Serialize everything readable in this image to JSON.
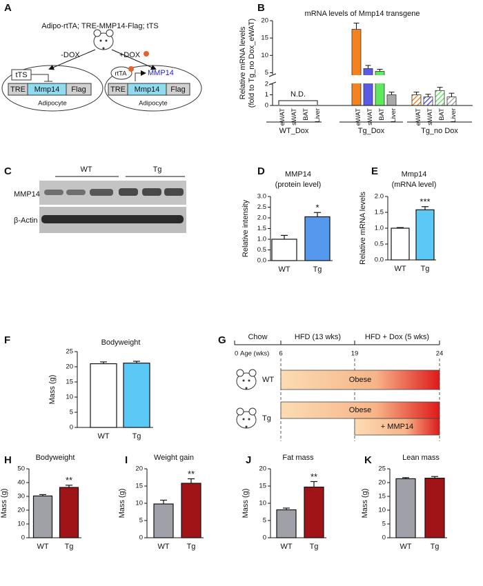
{
  "diagram_a": {
    "panel": "A",
    "title": "Adipo-rtTA; TRE-MMP14-Flag; tTS",
    "left_arrow": "-DOX",
    "right_arrow": "+DOX",
    "left_cell": {
      "repressor": "tTS",
      "promoter": "TRE",
      "gene": "Mmp14",
      "tag": "Flag",
      "label": "Adipocyte"
    },
    "right_cell": {
      "activator": "rtTA",
      "product": "MMP14",
      "promoter": "TRE",
      "gene": "Mmp14",
      "tag": "Flag",
      "label": "Adipocyte"
    }
  },
  "blot_c": {
    "panel": "C",
    "groups": [
      "WT",
      "Tg"
    ],
    "rows": [
      "MMP14",
      "β-Actin"
    ]
  },
  "timeline_g": {
    "panel": "G",
    "phases": [
      "Chow",
      "HFD (13 wks)",
      "HFD + Dox (5 wks)"
    ],
    "ticks": [
      0,
      6,
      19,
      24
    ],
    "axis_label": "Age (wks)",
    "rows": [
      {
        "name": "WT",
        "bars": [
          "Obese"
        ]
      },
      {
        "name": "Tg",
        "bars": [
          "Obese",
          "+ MMP14"
        ]
      }
    ]
  },
  "chart_data": [
    {
      "panel": "B",
      "type": "broken-bar",
      "title": "mRNA levels of Mmp14 transgene",
      "y_label": "Relative mRNA levels",
      "y_label_sub": "(fold to Tg_no Dox_eWAT)",
      "categories": [
        "eWAT",
        "sWAT",
        "BAT",
        "Liver"
      ],
      "series": [
        {
          "name": "WT_Dox",
          "values": [
            null,
            null,
            null,
            null
          ]
        },
        {
          "name": "Tg_Dox",
          "values": [
            17.5,
            6.2,
            5.4,
            1.0
          ],
          "errors": [
            1.8,
            0.9,
            0.6,
            0.25
          ],
          "colors": [
            "#f5821f",
            "#5a5ae6",
            "#5ee85e",
            "#a8a8a8"
          ]
        },
        {
          "name": "Tg_no Dox",
          "values": [
            1.0,
            0.8,
            1.4,
            0.8
          ],
          "errors": [
            0.25,
            0.25,
            0.3,
            0.35
          ],
          "colors": [
            "#f5821f",
            "#5a5ae6",
            "#5ee85e",
            "#a8a8a8"
          ],
          "hatch": true
        }
      ],
      "annotation": "N.D.",
      "ylim": [
        0,
        20
      ],
      "ybreak": [
        2,
        4.5
      ],
      "yticks": [
        0,
        1,
        2,
        5,
        10,
        15,
        20
      ]
    },
    {
      "panel": "D",
      "type": "bar",
      "title": "MMP14",
      "subtitle": "(protein level)",
      "y_label": "Relative intensity",
      "categories": [
        "WT",
        "Tg"
      ],
      "values": [
        1.0,
        2.05
      ],
      "errors": [
        0.18,
        0.2
      ],
      "colors": [
        "#ffffff",
        "#5599ee"
      ],
      "significance": [
        null,
        "*"
      ],
      "ylim": [
        0,
        3
      ],
      "yticks": [
        {
          "value": 0,
          "label": "0.0"
        },
        {
          "value": 0.5,
          "label": "0.5"
        },
        {
          "value": 1,
          "label": "1.0"
        },
        {
          "value": 1.5,
          "label": "1.5"
        },
        {
          "value": 2,
          "label": "2.0"
        },
        {
          "value": 2.5,
          "label": "2.5"
        },
        {
          "value": 3,
          "label": "3.0"
        }
      ]
    },
    {
      "panel": "E",
      "type": "bar",
      "title": "Mmp14",
      "subtitle": "(mRNA level)",
      "y_label": "Relative mRNA levels",
      "categories": [
        "WT",
        "Tg"
      ],
      "values": [
        1.0,
        1.58
      ],
      "errors": [
        0.02,
        0.1
      ],
      "colors": [
        "#ffffff",
        "#5cc8f5"
      ],
      "significance": [
        null,
        "***"
      ],
      "ylim": [
        0,
        2
      ],
      "yticks": [
        {
          "value": 0,
          "label": "0.0"
        },
        {
          "value": 0.5,
          "label": "0.5"
        },
        {
          "value": 1,
          "label": "1.0"
        },
        {
          "value": 1.5,
          "label": "1.5"
        },
        {
          "value": 2,
          "label": "2.0"
        }
      ]
    },
    {
      "panel": "F",
      "type": "bar",
      "title": "Bodyweight",
      "y_label": "Mass (g)",
      "categories": [
        "WT",
        "Tg"
      ],
      "values": [
        21.0,
        21.2
      ],
      "errors": [
        0.6,
        0.6
      ],
      "colors": [
        "#ffffff",
        "#5cc8f5"
      ],
      "ylim": [
        0,
        25
      ],
      "yticks": [
        0,
        5,
        10,
        15,
        20,
        25
      ]
    },
    {
      "panel": "H",
      "type": "bar",
      "title": "Bodyweight",
      "y_label": "Mass (g)",
      "categories": [
        "WT",
        "Tg"
      ],
      "values": [
        30.3,
        36.5
      ],
      "errors": [
        1.0,
        1.6
      ],
      "colors": [
        "#a0a0a8",
        "#a01418"
      ],
      "significance": [
        null,
        "**"
      ],
      "ylim": [
        0,
        50
      ],
      "yticks": [
        0,
        10,
        20,
        30,
        40,
        50
      ]
    },
    {
      "panel": "I",
      "type": "bar",
      "title": "Weight gain",
      "y_label": "Mass (g)",
      "categories": [
        "WT",
        "Tg"
      ],
      "values": [
        9.8,
        15.8
      ],
      "errors": [
        1.1,
        1.3
      ],
      "colors": [
        "#a0a0a8",
        "#a01418"
      ],
      "significance": [
        null,
        "**"
      ],
      "ylim": [
        0,
        20
      ],
      "yticks": [
        0,
        5,
        10,
        15,
        20
      ]
    },
    {
      "panel": "J",
      "type": "bar",
      "title": "Fat mass",
      "y_label": "Mass (g)",
      "categories": [
        "WT",
        "Tg"
      ],
      "values": [
        8.1,
        14.7
      ],
      "errors": [
        0.5,
        1.6
      ],
      "colors": [
        "#a0a0a8",
        "#a01418"
      ],
      "significance": [
        null,
        "**"
      ],
      "ylim": [
        0,
        20
      ],
      "yticks": [
        0,
        5,
        10,
        15,
        20
      ]
    },
    {
      "panel": "K",
      "type": "bar",
      "title": "Lean mass",
      "y_label": "Mass (g)",
      "categories": [
        "WT",
        "Tg"
      ],
      "values": [
        21.4,
        21.6
      ],
      "errors": [
        0.4,
        0.6
      ],
      "colors": [
        "#a0a0a8",
        "#a01418"
      ],
      "ylim": [
        0,
        25
      ],
      "yticks": [
        0,
        5,
        10,
        15,
        20,
        25
      ]
    }
  ]
}
